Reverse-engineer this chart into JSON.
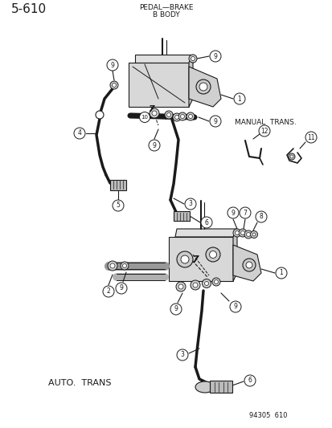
{
  "page_num": "5-610",
  "title_line1": "PEDAL—BRAKE",
  "title_line2": "B BODY",
  "manual_trans_label": "MANUAL  TRANS.",
  "auto_trans_label": "AUTO.  TRANS",
  "catalog_num": "94305  610",
  "bg_color": "#ffffff",
  "line_color": "#1a1a1a",
  "text_color": "#1a1a1a"
}
